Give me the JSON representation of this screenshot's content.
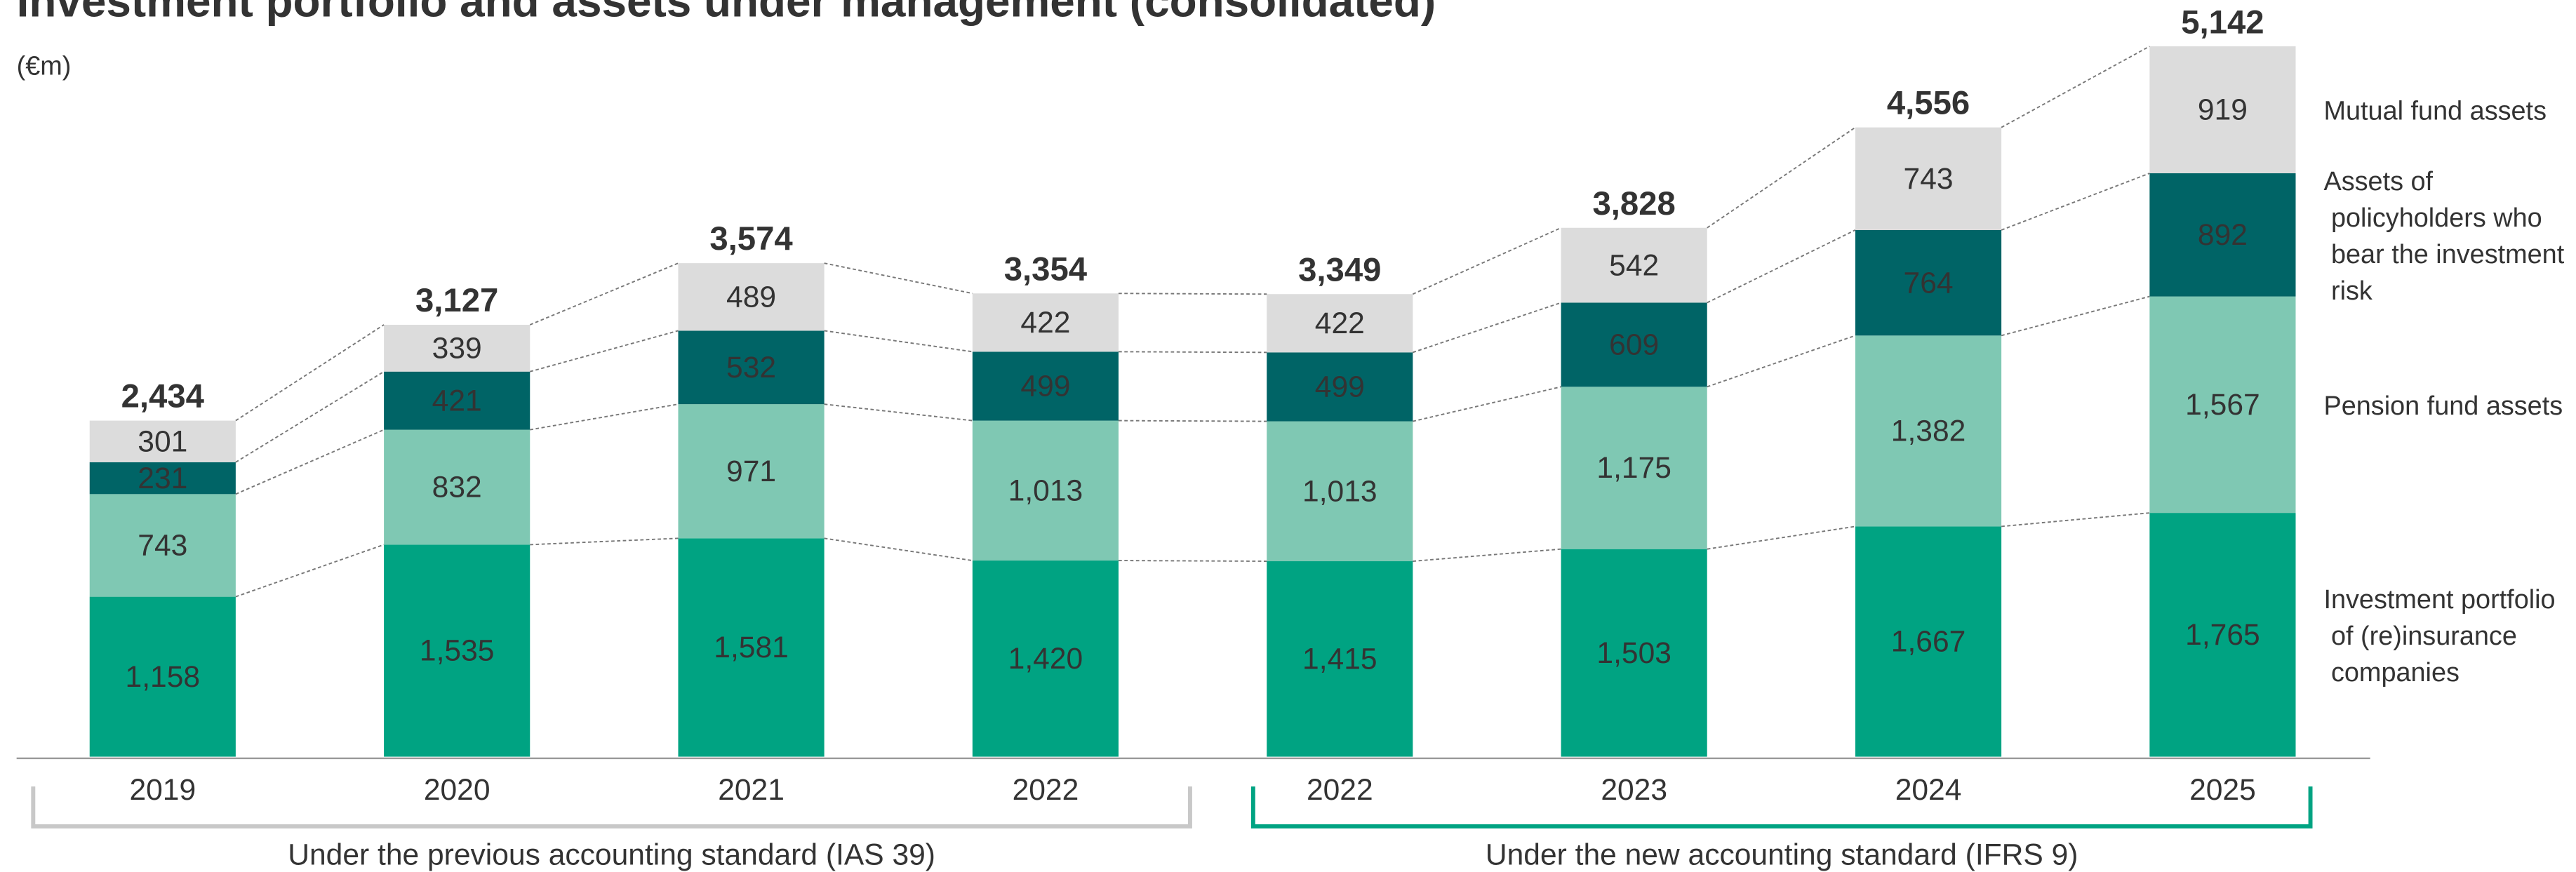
{
  "chart_data": {
    "type": "stacked_bar",
    "title": "Investment portfolio and assets under management (consolidated)",
    "subtitle": "(€m)",
    "categories": [
      "2019",
      "2020",
      "2021",
      "2022",
      "2022",
      "2023",
      "2024",
      "2025"
    ],
    "series": [
      {
        "name": "Investment portfolio of (re)insurance companies",
        "color": "#00a382",
        "values": [
          1158,
          1535,
          1581,
          1420,
          1415,
          1503,
          1667,
          1765
        ],
        "value_labels": [
          "1,158",
          "1,535",
          "1,581",
          "1,420",
          "1,415",
          "1,503",
          "1,667",
          "1,765"
        ]
      },
      {
        "name": "Pension fund assets",
        "color": "#7fc8b3",
        "values": [
          743,
          832,
          971,
          1013,
          1013,
          1175,
          1382,
          1567
        ],
        "value_labels": [
          "743",
          "832",
          "971",
          "1,013",
          "1,013",
          "1,175",
          "1,382",
          "1,567"
        ]
      },
      {
        "name": "Assets of policyholders who bear the investment risk",
        "color": "#006466",
        "values": [
          231,
          421,
          532,
          499,
          499,
          609,
          764,
          892
        ]
      },
      {
        "name": "Mutual fund assets",
        "color": "#dcdcdc",
        "values": [
          301,
          339,
          489,
          422,
          422,
          542,
          743,
          919
        ]
      }
    ],
    "totals": [
      2434,
      3127,
      3574,
      3354,
      3349,
      3828,
      4556,
      5142
    ],
    "total_labels": [
      "2,434",
      "3,127",
      "3,574",
      "3,354",
      "3,349",
      "3,828",
      "4,556",
      "5,142"
    ],
    "groups": [
      {
        "label": "Under the previous accounting standard (IAS 39)",
        "color": "#c8c8c8"
      },
      {
        "label": "Under the new accounting standard (IFRS 9)",
        "color": "#00a382"
      }
    ]
  }
}
